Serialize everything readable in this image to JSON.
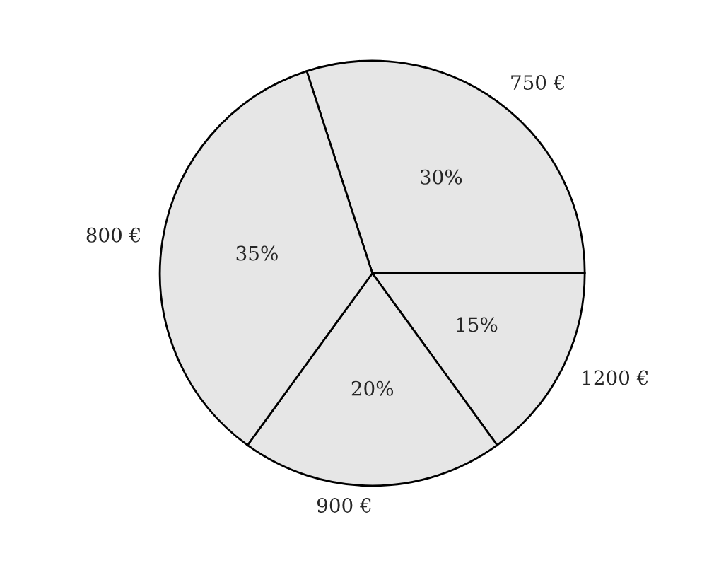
{
  "chart_data": {
    "type": "pie",
    "categories": [
      "750 €",
      "1200 €",
      "900 €",
      "800 €"
    ],
    "values": [
      30,
      15,
      20,
      35
    ],
    "value_labels": [
      "30%",
      "15%",
      "20%",
      "35%"
    ],
    "colors": [
      "#e6e6e6",
      "#e6e6e6",
      "#e6e6e6",
      "#e6e6e6"
    ],
    "legend": false
  }
}
